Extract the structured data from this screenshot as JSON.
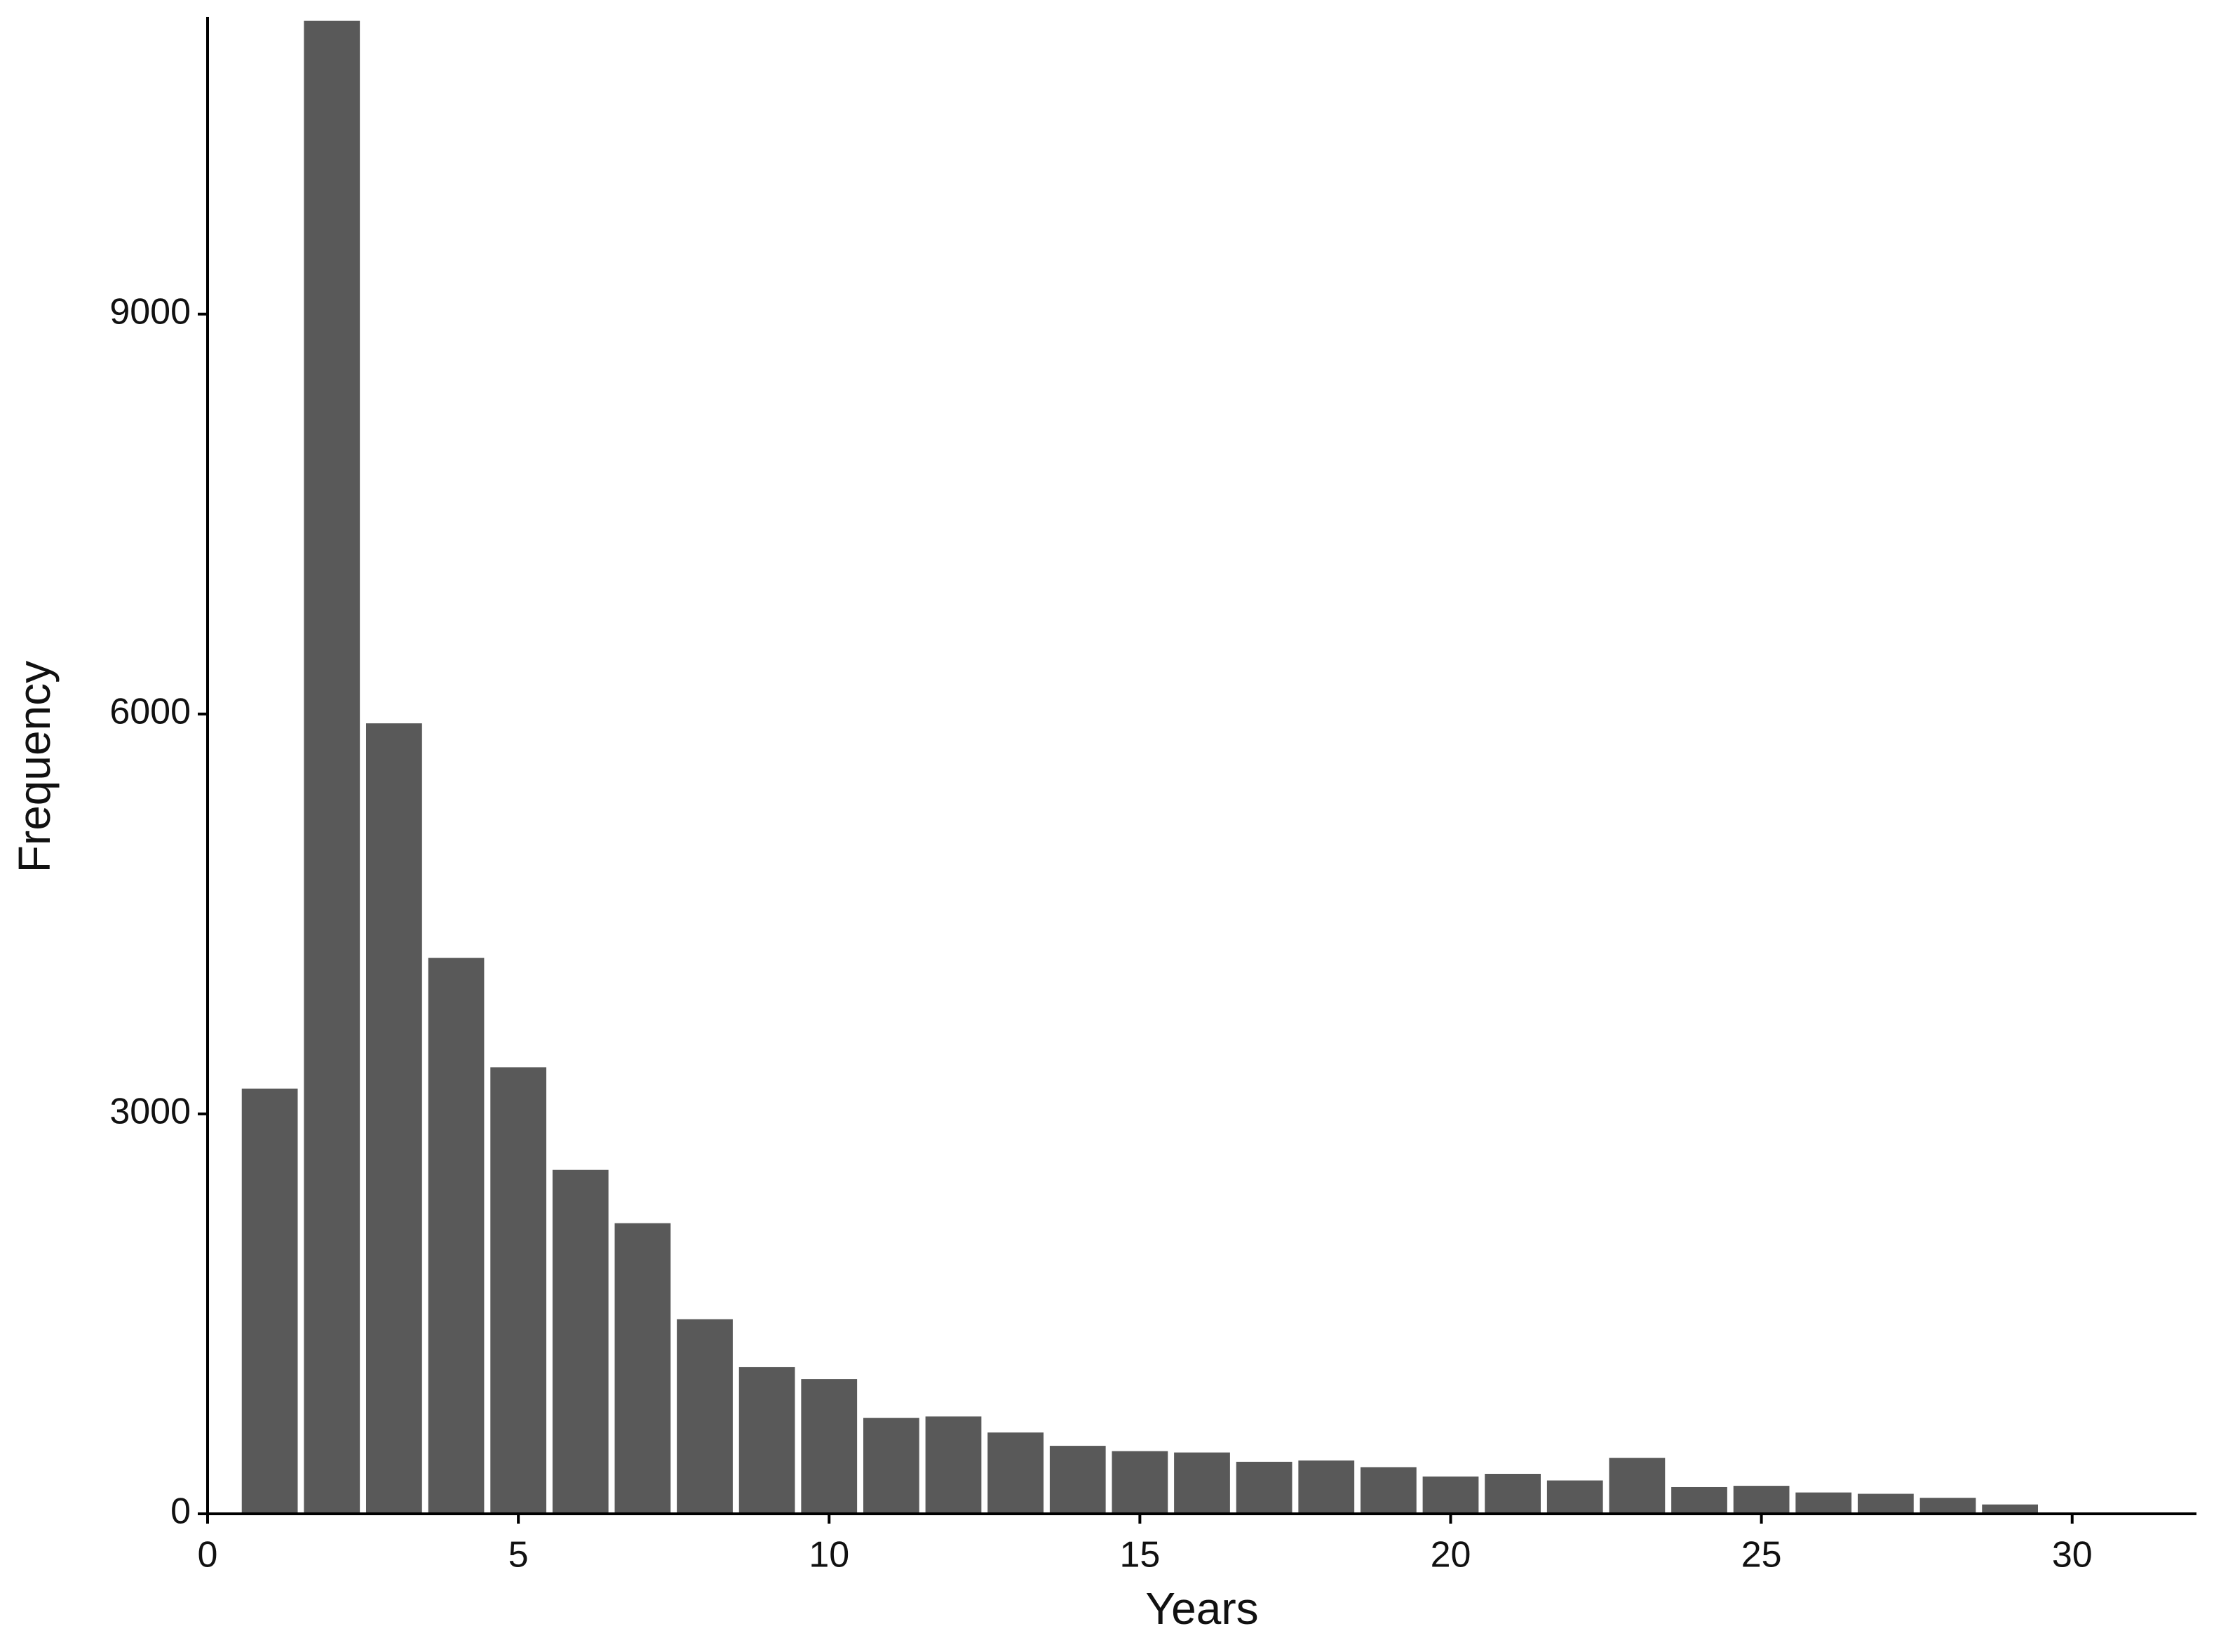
{
  "chart_data": {
    "type": "bar",
    "x_label": "Years",
    "y_label": "Frequency",
    "x": [
      1,
      2,
      3,
      4,
      5,
      6,
      7,
      8,
      9,
      10,
      11,
      12,
      13,
      14,
      15,
      16,
      17,
      18,
      19,
      20,
      21,
      22,
      23,
      24,
      25,
      26,
      27,
      28,
      29
    ],
    "values": [
      3190,
      11200,
      5930,
      4170,
      3350,
      2580,
      2180,
      1460,
      1100,
      1010,
      720,
      730,
      610,
      510,
      470,
      460,
      390,
      400,
      350,
      280,
      300,
      250,
      420,
      200,
      210,
      160,
      150,
      120,
      70
    ],
    "color": "#595959",
    "xlim": [
      0,
      32
    ],
    "xticks": [
      0,
      5,
      10,
      15,
      20,
      25,
      30
    ],
    "ylim": [
      0,
      11230
    ],
    "yticks": [
      0,
      3000,
      6000,
      9000
    ],
    "grid": false
  }
}
